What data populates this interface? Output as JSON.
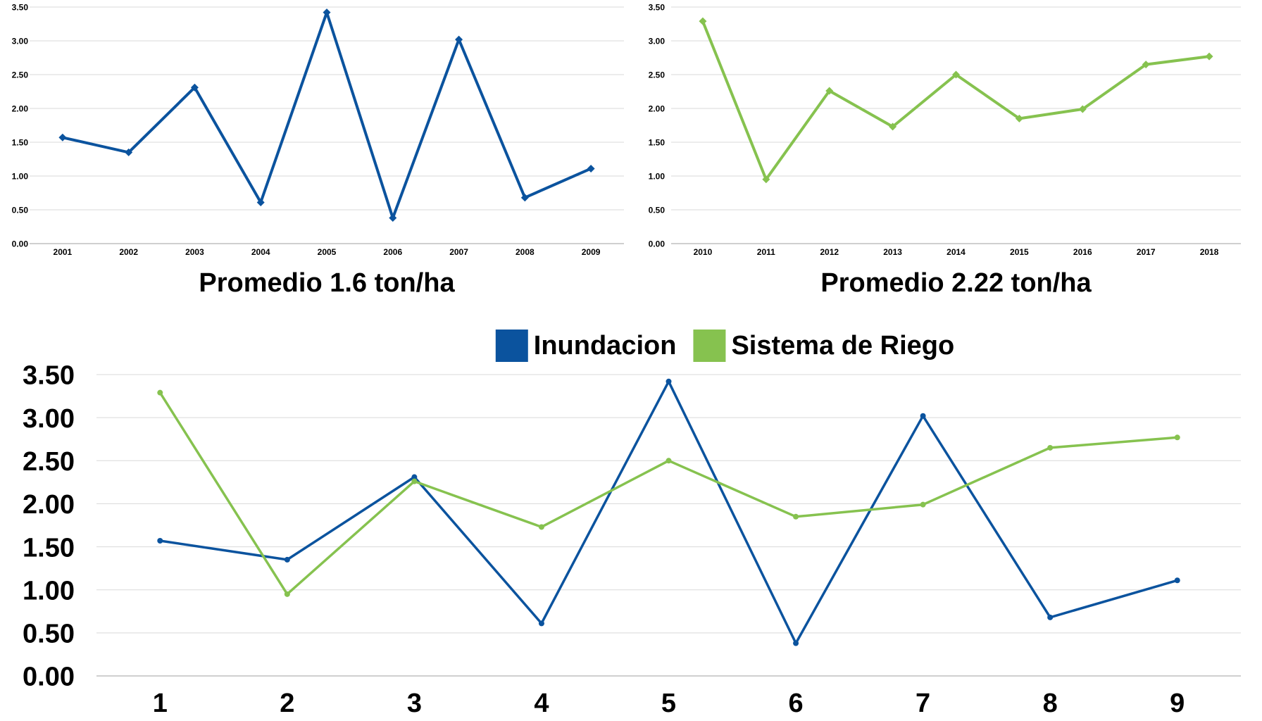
{
  "colors": {
    "inundacion": "#0b539e",
    "riego": "#86c24f",
    "grid": "#d9d9d9",
    "axis": "#bfbfbf"
  },
  "chart_data": [
    {
      "type": "line",
      "title": "Promedio 1.6 ton/ha",
      "categories": [
        "2001",
        "2002",
        "2003",
        "2004",
        "2005",
        "2006",
        "2007",
        "2008",
        "2009"
      ],
      "series": [
        {
          "values": [
            1.57,
            1.35,
            2.31,
            0.61,
            3.42,
            0.38,
            3.02,
            0.68,
            1.11
          ]
        }
      ],
      "yticks": [
        "0.00",
        "0.50",
        "1.00",
        "1.50",
        "2.00",
        "2.50",
        "3.00",
        "3.50"
      ],
      "ylim": [
        0,
        3.5
      ],
      "grid": true,
      "marker": "diamond"
    },
    {
      "type": "line",
      "title": "Promedio 2.22 ton/ha",
      "categories": [
        "2010",
        "2011",
        "2012",
        "2013",
        "2014",
        "2015",
        "2016",
        "2017",
        "2018"
      ],
      "series": [
        {
          "values": [
            3.29,
            0.95,
            2.26,
            1.73,
            2.5,
            1.85,
            1.99,
            2.65,
            2.77
          ]
        }
      ],
      "yticks": [
        "0.00",
        "0.50",
        "1.00",
        "1.50",
        "2.00",
        "2.50",
        "3.00",
        "3.50"
      ],
      "ylim": [
        0,
        3.5
      ],
      "grid": true,
      "marker": "diamond"
    },
    {
      "type": "line",
      "categories": [
        "1",
        "2",
        "3",
        "4",
        "5",
        "6",
        "7",
        "8",
        "9"
      ],
      "series": [
        {
          "name": "Inundacion",
          "values": [
            1.57,
            1.35,
            2.31,
            0.61,
            3.42,
            0.38,
            3.02,
            0.68,
            1.11
          ]
        },
        {
          "name": "Sistema de Riego",
          "values": [
            3.29,
            0.95,
            2.26,
            1.73,
            2.5,
            1.85,
            1.99,
            2.65,
            2.77
          ]
        }
      ],
      "yticks": [
        "0.00",
        "0.50",
        "1.00",
        "1.50",
        "2.00",
        "2.50",
        "3.00",
        "3.50"
      ],
      "ylim": [
        0,
        3.5
      ],
      "grid": true,
      "legend": "top-center",
      "marker": "circle"
    }
  ]
}
